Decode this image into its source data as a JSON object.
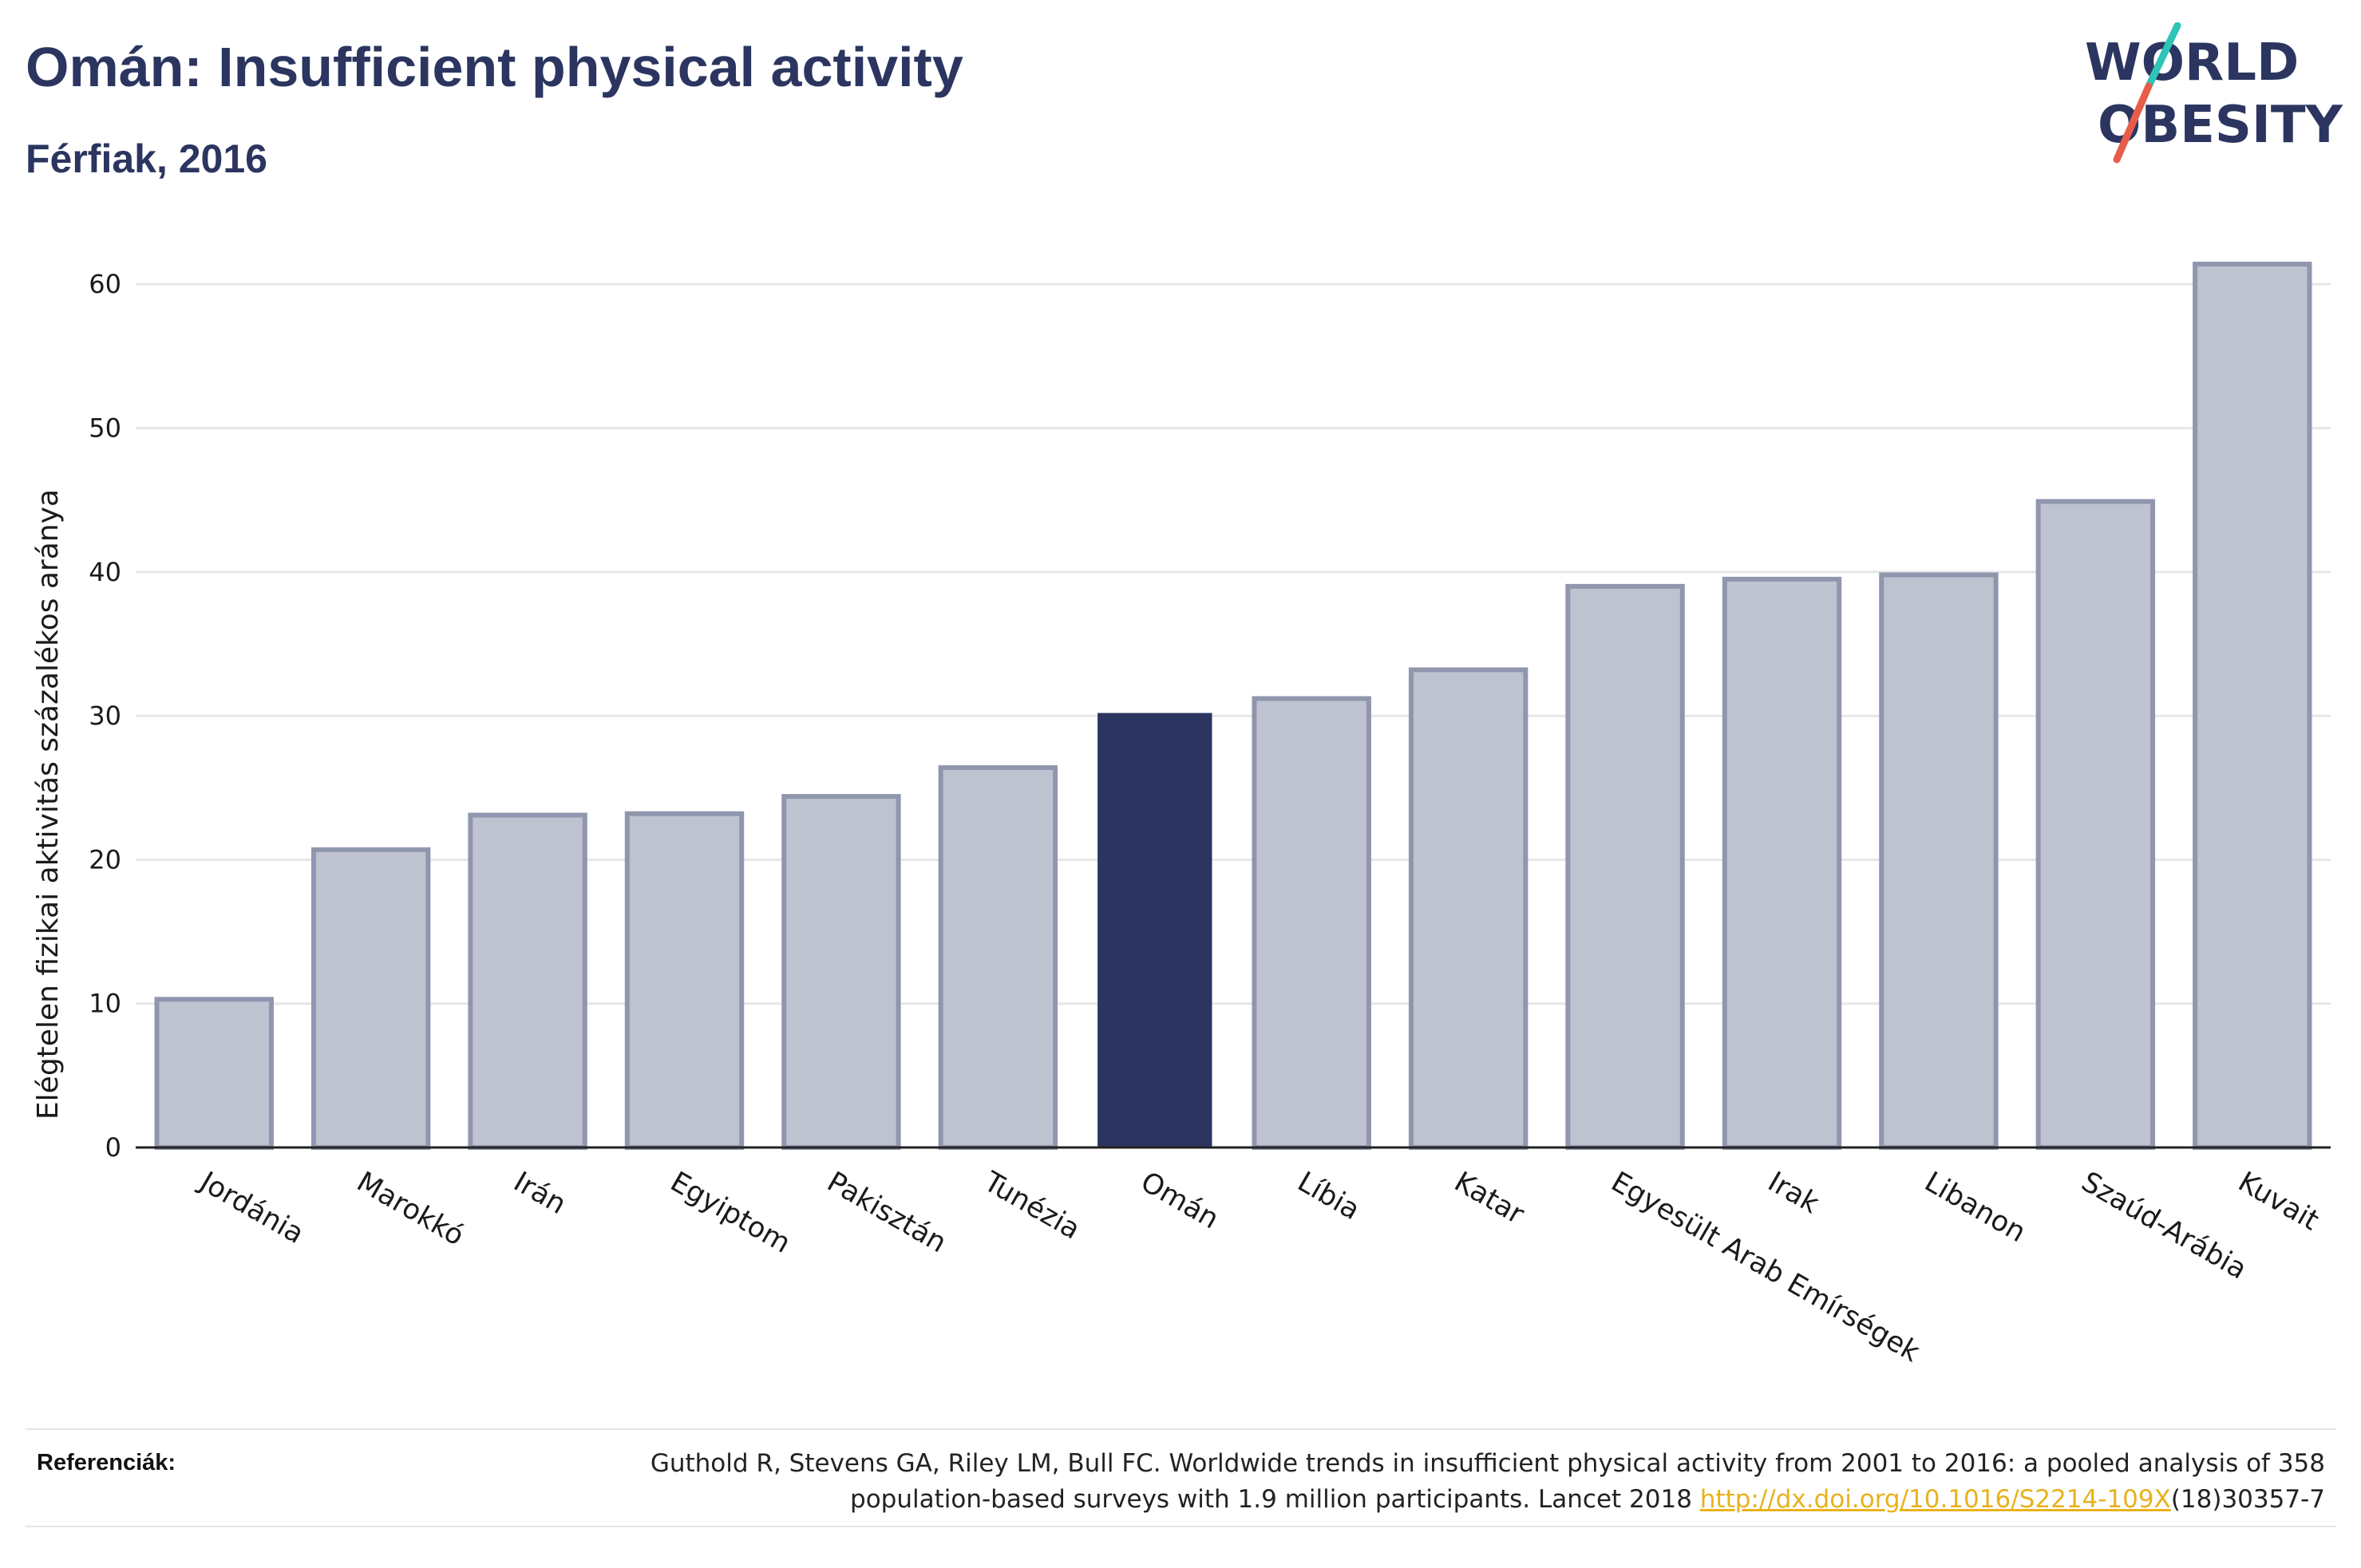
{
  "title": "Omán: Insufficient physical activity",
  "subtitle": "Férfiak, 2016",
  "logo": {
    "line1": "WORLD",
    "line2": "OBESITY"
  },
  "colors": {
    "highlight": "#2b3560",
    "bar_fill": "#bfc3d0",
    "bar_stroke": "#9096ae",
    "grid": "#e6e6e6",
    "logo_slash_teal": "#2ec4b6",
    "logo_slash_red": "#e85c4a",
    "link": "#e8b21c"
  },
  "chart_data": {
    "type": "bar",
    "ylabel": "Elégtelen fizikai aktivitás százalékos aránya",
    "xlabel": "",
    "ylim": [
      0,
      65
    ],
    "yticks": [
      0,
      10,
      20,
      30,
      40,
      50,
      60
    ],
    "categories": [
      "Jordánia",
      "Marokkó",
      "Irán",
      "Egyiptom",
      "Pakisztán",
      "Tunézia",
      "Omán",
      "Líbia",
      "Katar",
      "Egyesült Arab Emírségek",
      "Irak",
      "Libanon",
      "Szaúd-Arábia",
      "Kuvait"
    ],
    "values": [
      10.3,
      20.7,
      23.1,
      23.2,
      24.4,
      26.4,
      30.2,
      31.2,
      33.2,
      39.0,
      39.5,
      39.8,
      44.9,
      61.4
    ],
    "highlight_category": "Omán",
    "grid": true,
    "legend": "none"
  },
  "references": {
    "label": "Referenciák:",
    "line1": "Guthold R, Stevens GA, Riley LM, Bull FC. Worldwide trends in insufficient physical activity from 2001 to 2016: a pooled analysis of 358",
    "line2_prefix": "population-based surveys with 1.9 million participants. Lancet 2018 ",
    "link_text": "http://dx.doi.org/10.1016/S2214-109X",
    "line2_suffix": "(18)30357-7"
  }
}
